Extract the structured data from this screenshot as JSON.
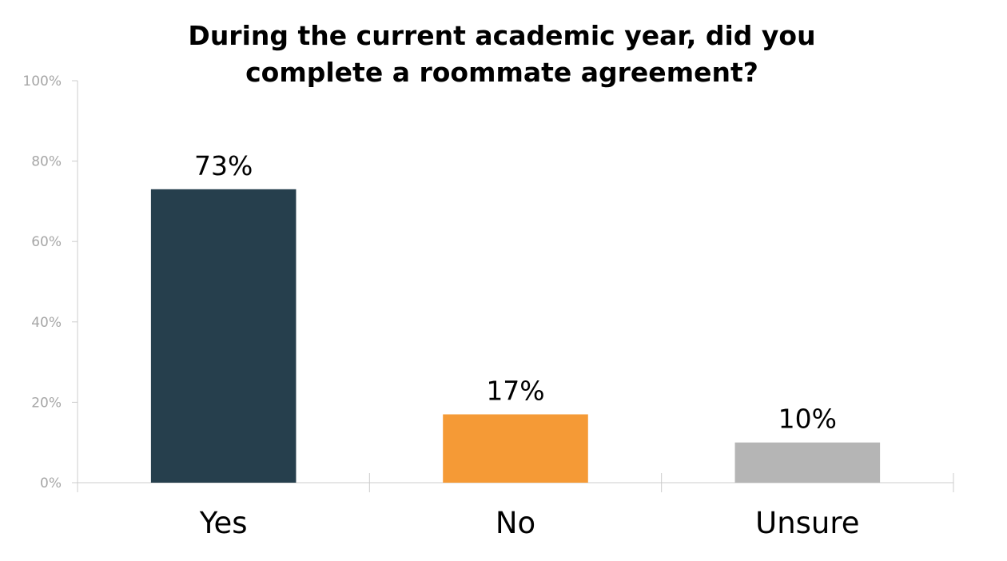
{
  "chart_data": {
    "type": "bar",
    "title_lines": [
      "During the current academic year, did you",
      "complete a roommate agreement?"
    ],
    "categories": [
      "Yes",
      "No",
      "Unsure"
    ],
    "values": [
      73,
      17,
      10
    ],
    "data_labels": [
      "73%",
      "17%",
      "10%"
    ],
    "colors": [
      "#263f4d",
      "#f59a36",
      "#b5b5b5"
    ],
    "ylim": [
      0,
      100
    ],
    "yticks": [
      0,
      20,
      40,
      60,
      80,
      100
    ],
    "ytick_labels": [
      "0%",
      "20%",
      "40%",
      "60%",
      "80%",
      "100%"
    ],
    "axis_color": "#cccccc",
    "tick_label_color": "#a6a6a6",
    "grid": false,
    "legend": "none"
  }
}
